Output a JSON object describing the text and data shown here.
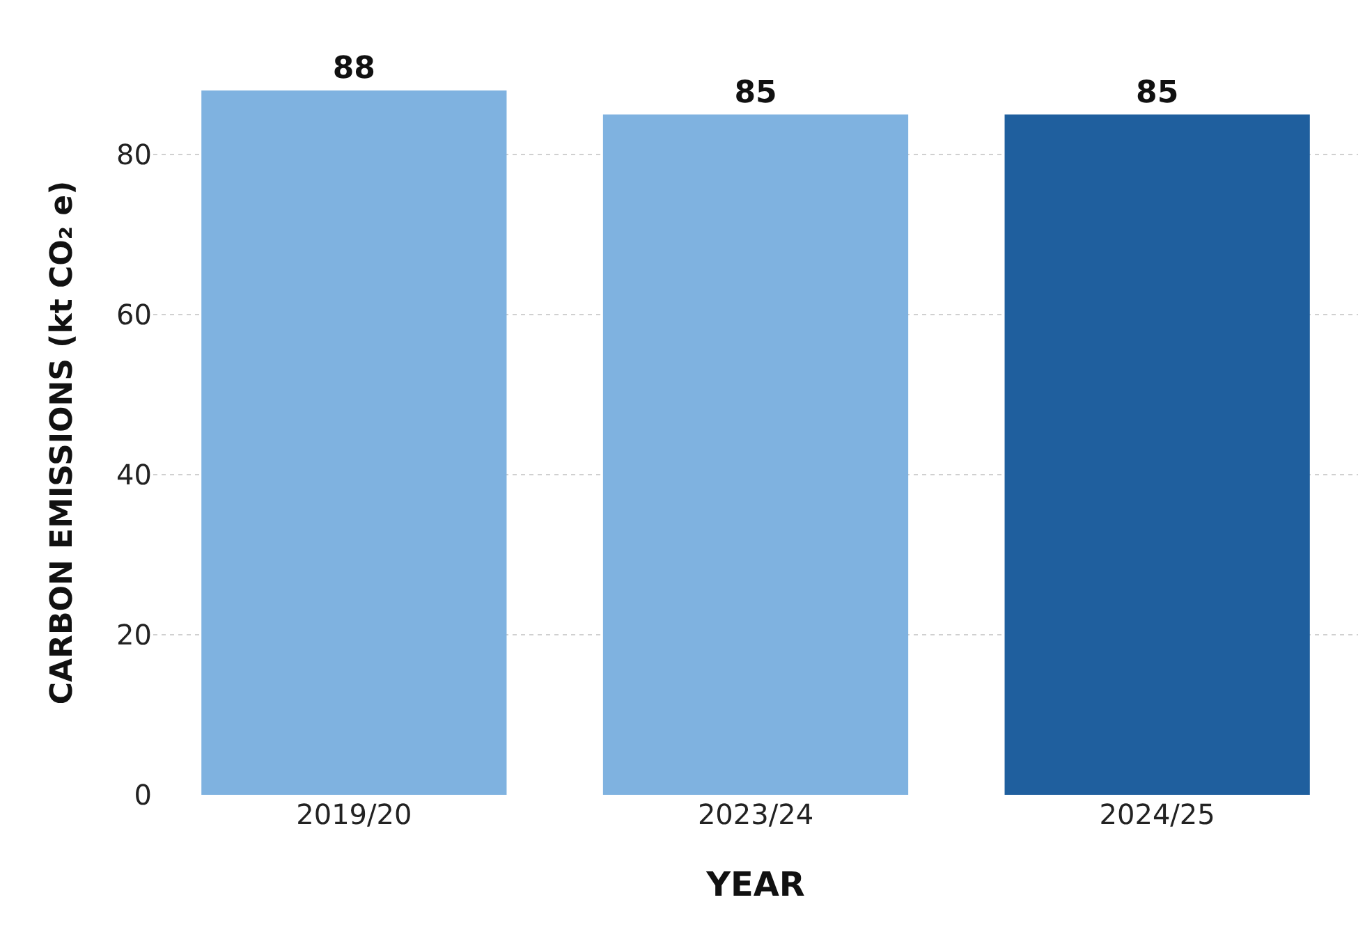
{
  "chart_data": {
    "type": "bar",
    "xlabel": "YEAR",
    "ylabel": "CARBON EMISSIONS (kt CO₂ e)",
    "categories": [
      "2019/20",
      "2023/24",
      "2024/25"
    ],
    "values": [
      88,
      85,
      85
    ],
    "colors": [
      "#7fb2e0",
      "#7fb2e0",
      "#1f5f9e"
    ],
    "ylim": [
      0,
      88
    ],
    "yticks": [
      0,
      20,
      40,
      60,
      80
    ],
    "grid": "y",
    "data_labels": true
  }
}
